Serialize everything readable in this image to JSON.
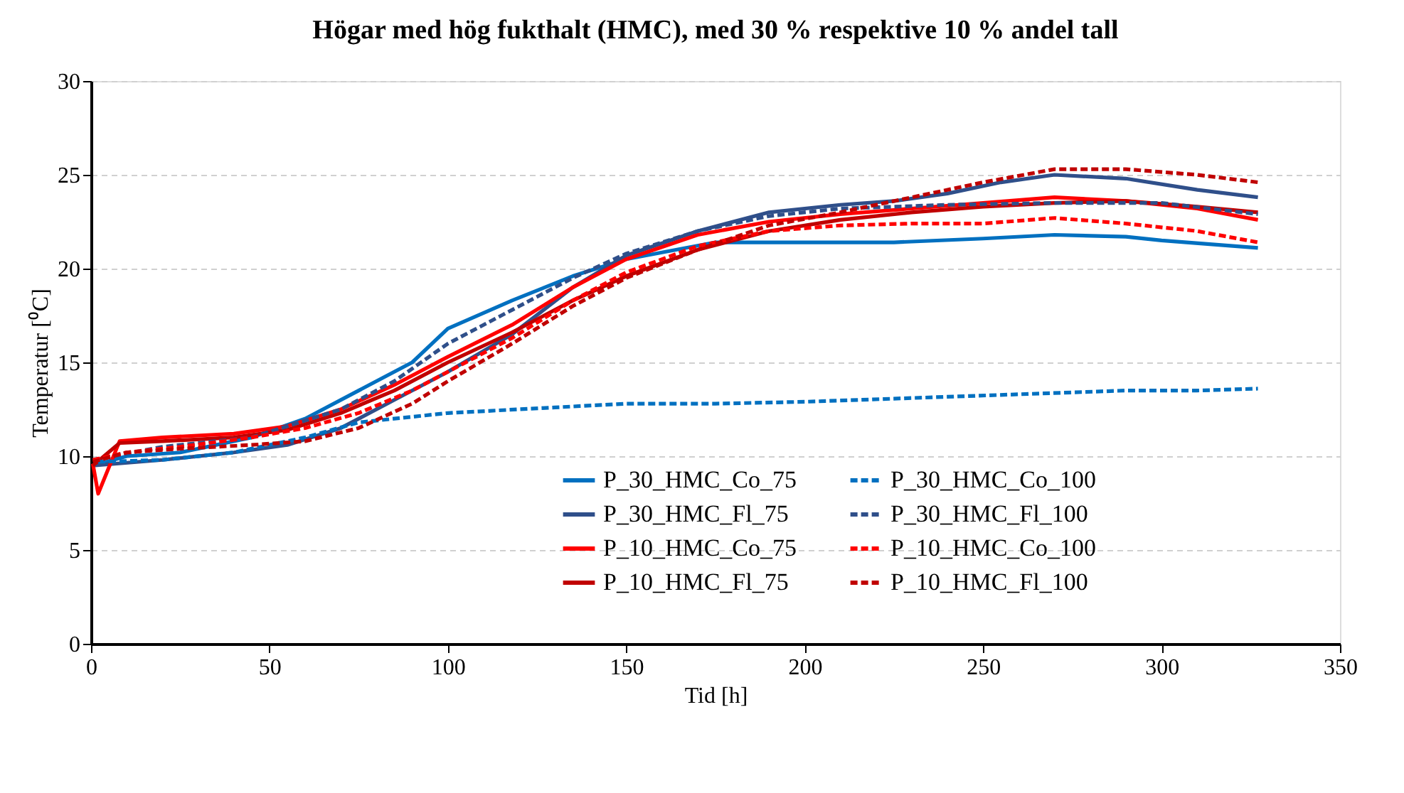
{
  "chart_data": {
    "type": "line",
    "title": "Högar med hög fukthalt (HMC), med 30 % respektive 10 % andel tall",
    "xlabel": "Tid [h]",
    "ylabel": "Temperatur [⁰C]",
    "xlim": [
      0,
      350
    ],
    "xticks": [
      0,
      50,
      100,
      150,
      200,
      250,
      300,
      350
    ],
    "ylim": [
      0,
      30
    ],
    "yticks": [
      0,
      5,
      10,
      15,
      20,
      25,
      30
    ],
    "grid": "y",
    "legend": "bottom right",
    "marker": "none",
    "series": [
      {
        "name": "P_30_HMC_Co_75",
        "color": "#0070c0",
        "line_style": "solid",
        "x": [
          0.5,
          10,
          25,
          45,
          60,
          75,
          90,
          100,
          118,
          135,
          150,
          175,
          200,
          225,
          250,
          270,
          290,
          300,
          327
        ],
        "values": [
          9.5,
          10,
          10.2,
          11,
          12,
          13.5,
          15,
          16.8,
          18.3,
          19.6,
          20.5,
          21.4,
          21.4,
          21.4,
          21.6,
          21.8,
          21.7,
          21.5,
          21.1
        ]
      },
      {
        "name": "P_30_HMC_Fl_75",
        "color": "#2f4f8a",
        "line_style": "solid",
        "x": [
          0.5,
          20,
          40,
          55,
          70,
          85,
          100,
          118,
          135,
          150,
          170,
          190,
          210,
          225,
          240,
          255,
          270,
          290,
          310,
          327
        ],
        "values": [
          9.5,
          9.8,
          10.2,
          10.6,
          11.5,
          13,
          14.5,
          16.5,
          19,
          20.7,
          22,
          23,
          23.4,
          23.6,
          24,
          24.6,
          25,
          24.8,
          24.2,
          23.8
        ]
      },
      {
        "name": "P_10_HMC_Co_75",
        "color": "#ff0000",
        "line_style": "solid",
        "x": [
          0.5,
          2,
          8,
          20,
          40,
          55,
          70,
          85,
          100,
          118,
          135,
          150,
          170,
          190,
          210,
          230,
          250,
          270,
          290,
          310,
          327
        ],
        "values": [
          9.6,
          8,
          10.8,
          11,
          11.2,
          11.6,
          12.5,
          13.8,
          15.3,
          17,
          19,
          20.5,
          21.8,
          22.5,
          22.9,
          23.2,
          23.5,
          23.8,
          23.6,
          23.2,
          22.6
        ]
      },
      {
        "name": "P_10_HMC_Fl_75",
        "color": "#c00000",
        "line_style": "solid",
        "x": [
          0.5,
          8,
          20,
          40,
          55,
          70,
          85,
          100,
          118,
          135,
          150,
          170,
          190,
          210,
          230,
          250,
          270,
          290,
          310,
          327
        ],
        "values": [
          9.5,
          10.7,
          10.8,
          11,
          11.4,
          12.3,
          13.5,
          15,
          16.6,
          18.3,
          19.6,
          21,
          22,
          22.6,
          23,
          23.3,
          23.5,
          23.6,
          23.3,
          23
        ]
      },
      {
        "name": "P_30_HMC_Co_100",
        "color": "#0070c0",
        "line_style": "dashed",
        "x": [
          2,
          20,
          40,
          60,
          75,
          100,
          130,
          150,
          175,
          200,
          230,
          260,
          290,
          310,
          327
        ],
        "values": [
          9.7,
          9.8,
          10.2,
          11,
          11.8,
          12.3,
          12.6,
          12.8,
          12.8,
          12.9,
          13.1,
          13.3,
          13.5,
          13.5,
          13.6
        ]
      },
      {
        "name": "P_30_HMC_Fl_100",
        "color": "#2f4f8a",
        "line_style": "dashed",
        "x": [
          0.5,
          20,
          45,
          70,
          85,
          100,
          118,
          135,
          150,
          170,
          190,
          210,
          240,
          270,
          300,
          327
        ],
        "values": [
          9.8,
          10.5,
          11,
          12.5,
          14,
          16,
          17.8,
          19.5,
          20.8,
          22,
          22.8,
          23.2,
          23.4,
          23.5,
          23.5,
          22.9
        ]
      },
      {
        "name": "P_10_HMC_Co_100",
        "color": "#ff0000",
        "line_style": "dashed",
        "x": [
          0.5,
          10,
          25,
          45,
          60,
          75,
          90,
          100,
          118,
          135,
          150,
          170,
          190,
          210,
          230,
          250,
          270,
          290,
          310,
          327
        ],
        "values": [
          9.8,
          10.2,
          10.5,
          11,
          11.5,
          12.3,
          13.5,
          14.5,
          16.3,
          18.3,
          19.8,
          21.2,
          22,
          22.3,
          22.4,
          22.4,
          22.7,
          22.4,
          22,
          21.4
        ]
      },
      {
        "name": "P_10_HMC_Fl_100",
        "color": "#c00000",
        "line_style": "dashed",
        "x": [
          0.5,
          10,
          25,
          45,
          60,
          75,
          90,
          100,
          118,
          135,
          150,
          170,
          190,
          210,
          230,
          250,
          270,
          290,
          310,
          327
        ],
        "values": [
          9.7,
          10.2,
          10.4,
          10.6,
          10.8,
          11.5,
          12.8,
          14,
          16,
          18,
          19.5,
          21,
          22.3,
          23,
          23.8,
          24.6,
          25.3,
          25.3,
          25,
          24.6
        ]
      }
    ]
  }
}
